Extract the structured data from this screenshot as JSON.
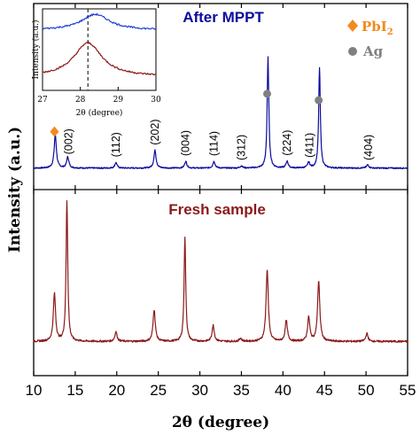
{
  "chart_data": {
    "type": "line",
    "xlabel": "2θ (degree)",
    "ylabel": "Intensity (a.u.)",
    "xlim": [
      10,
      55
    ],
    "xticks": [
      10,
      15,
      20,
      25,
      30,
      35,
      40,
      45,
      50,
      55
    ],
    "panels": [
      {
        "label": "After MPPT",
        "color": "#0b0b9c",
        "baseline": 0.05,
        "peaks": [
          {
            "x": 12.6,
            "h": 0.3
          },
          {
            "x": 14.1,
            "h": 0.1
          },
          {
            "x": 19.9,
            "h": 0.05
          },
          {
            "x": 24.6,
            "h": 0.16
          },
          {
            "x": 28.3,
            "h": 0.06
          },
          {
            "x": 31.7,
            "h": 0.06
          },
          {
            "x": 35.0,
            "h": 0.02
          },
          {
            "x": 38.2,
            "h": 1.0
          },
          {
            "x": 40.5,
            "h": 0.06
          },
          {
            "x": 43.1,
            "h": 0.05
          },
          {
            "x": 44.4,
            "h": 0.9
          },
          {
            "x": 50.2,
            "h": 0.03
          }
        ],
        "peak_labels": [
          {
            "x": 14.2,
            "text": "(002)"
          },
          {
            "x": 19.9,
            "text": "(112)"
          },
          {
            "x": 24.6,
            "text": "(202)"
          },
          {
            "x": 28.3,
            "text": "(004)"
          },
          {
            "x": 31.7,
            "text": "(114)"
          },
          {
            "x": 35.0,
            "text": "(312)"
          },
          {
            "x": 40.5,
            "text": "(224)"
          },
          {
            "x": 43.2,
            "text": "(411)"
          },
          {
            "x": 50.3,
            "text": "(404)"
          }
        ],
        "diamond_markers": [
          12.5
        ],
        "circle_markers": [
          38.1,
          44.3
        ]
      },
      {
        "label": "Fresh sample",
        "color": "#8b1a1a",
        "baseline": 0.07,
        "peaks": [
          {
            "x": 12.5,
            "h": 0.3
          },
          {
            "x": 14.0,
            "h": 0.88
          },
          {
            "x": 19.9,
            "h": 0.06
          },
          {
            "x": 24.5,
            "h": 0.2
          },
          {
            "x": 28.2,
            "h": 0.65
          },
          {
            "x": 31.6,
            "h": 0.1
          },
          {
            "x": 34.9,
            "h": 0.02
          },
          {
            "x": 38.1,
            "h": 0.45
          },
          {
            "x": 40.4,
            "h": 0.13
          },
          {
            "x": 43.1,
            "h": 0.15
          },
          {
            "x": 44.3,
            "h": 0.38
          },
          {
            "x": 50.1,
            "h": 0.05
          }
        ]
      }
    ],
    "legend": [
      {
        "marker": "diamond",
        "label": "PbI",
        "subscript": "2",
        "color": "#f28a1e"
      },
      {
        "marker": "circle",
        "label": "Ag",
        "color": "#808080"
      }
    ],
    "legend_position": "top-right",
    "inset": {
      "xlim": [
        27,
        30
      ],
      "xticks": [
        27,
        28,
        29,
        30
      ],
      "xlabel": "2θ (degree)",
      "ylabel": "Intensity (a.u.)",
      "dashed_line_x": 28.2,
      "series": [
        {
          "name": "After MPPT",
          "color": "#1f3fd6",
          "peak_x": 28.4,
          "h": 0.35,
          "offset": 0.62
        },
        {
          "name": "Fresh sample",
          "color": "#8b1a1a",
          "peak_x": 28.2,
          "h": 0.75,
          "offset": 0.05
        }
      ]
    }
  }
}
